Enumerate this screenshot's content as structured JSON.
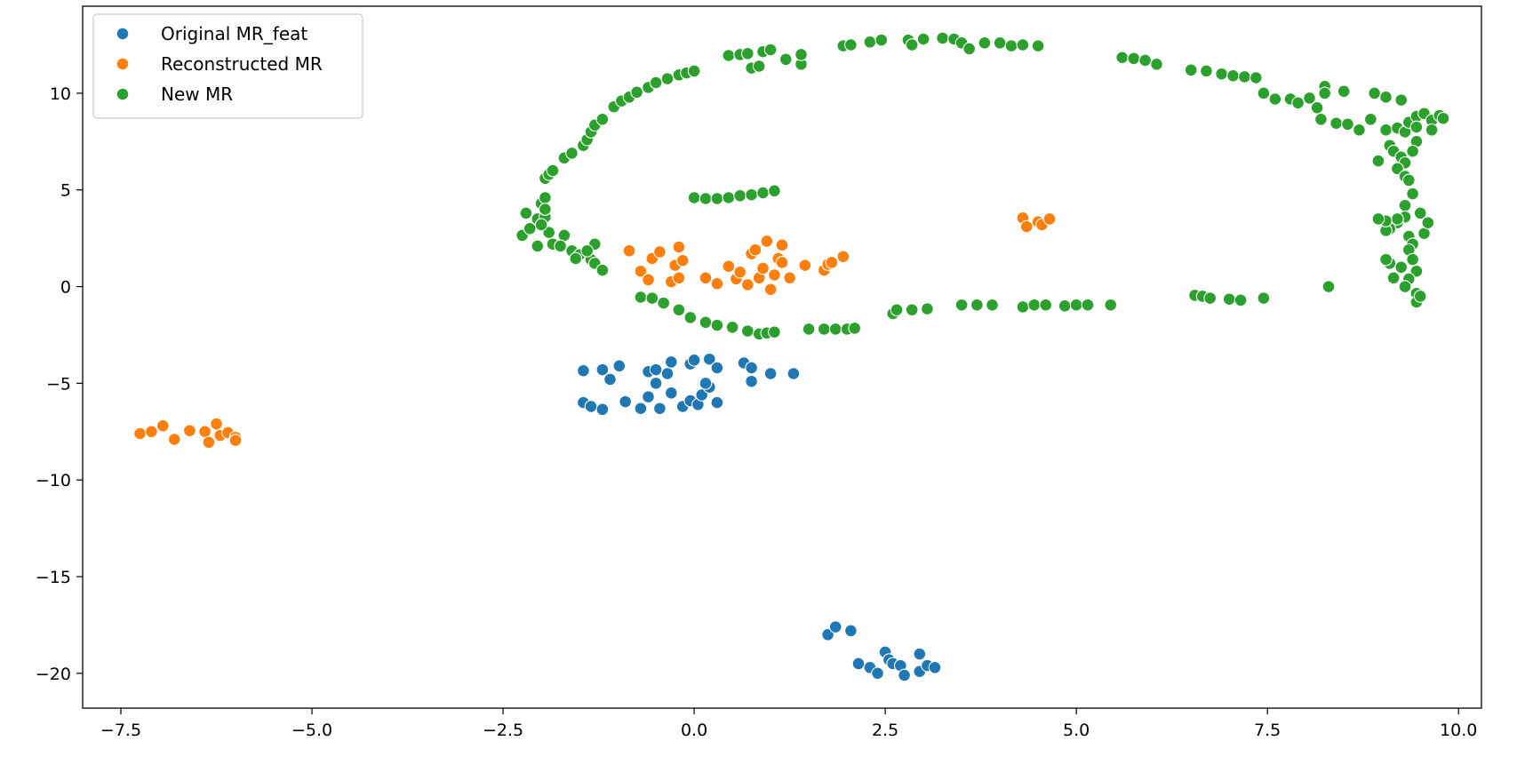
{
  "chart_data": {
    "type": "scatter",
    "title": "",
    "xlabel": "",
    "ylabel": "",
    "xlim": [
      -8.0,
      10.3
    ],
    "ylim": [
      -21.8,
      14.5
    ],
    "xticks": [
      -7.5,
      -5.0,
      -2.5,
      0.0,
      2.5,
      5.0,
      7.5,
      10.0
    ],
    "xtick_labels": [
      "−7.5",
      "−5.0",
      "−2.5",
      "0.0",
      "2.5",
      "5.0",
      "7.5",
      "10.0"
    ],
    "yticks": [
      -20,
      -15,
      -10,
      -5,
      0,
      5,
      10
    ],
    "ytick_labels": [
      "−20",
      "−15",
      "−10",
      "−5",
      "0",
      "5",
      "10"
    ],
    "grid": false,
    "legend_position": "top-left",
    "series": [
      {
        "name": "Original MR_feat",
        "color": "#1f77b4",
        "points": [
          [
            -1.45,
            -4.35
          ],
          [
            -1.2,
            -4.3
          ],
          [
            -1.1,
            -4.8
          ],
          [
            -0.98,
            -4.1
          ],
          [
            -0.6,
            -4.4
          ],
          [
            -0.5,
            -4.3
          ],
          [
            -0.35,
            -4.5
          ],
          [
            -0.3,
            -3.9
          ],
          [
            -0.05,
            -4.0
          ],
          [
            0.0,
            -3.8
          ],
          [
            0.2,
            -3.75
          ],
          [
            0.3,
            -4.2
          ],
          [
            0.65,
            -3.95
          ],
          [
            0.75,
            -4.2
          ],
          [
            1.0,
            -4.5
          ],
          [
            1.3,
            -4.5
          ],
          [
            -1.45,
            -6.0
          ],
          [
            -1.35,
            -6.2
          ],
          [
            -1.2,
            -6.35
          ],
          [
            -0.9,
            -5.95
          ],
          [
            -0.7,
            -6.3
          ],
          [
            -0.6,
            -5.7
          ],
          [
            -0.5,
            -5.0
          ],
          [
            -0.45,
            -6.3
          ],
          [
            -0.3,
            -5.5
          ],
          [
            -0.15,
            -6.2
          ],
          [
            -0.05,
            -5.9
          ],
          [
            0.05,
            -6.1
          ],
          [
            0.1,
            -5.6
          ],
          [
            0.2,
            -5.2
          ],
          [
            0.3,
            -6.0
          ],
          [
            0.15,
            -5.0
          ],
          [
            0.75,
            -4.9
          ],
          [
            1.75,
            -18.0
          ],
          [
            1.85,
            -17.6
          ],
          [
            2.05,
            -17.8
          ],
          [
            2.15,
            -19.5
          ],
          [
            2.3,
            -19.7
          ],
          [
            2.4,
            -20.0
          ],
          [
            2.5,
            -18.9
          ],
          [
            2.55,
            -19.3
          ],
          [
            2.6,
            -19.5
          ],
          [
            2.7,
            -19.6
          ],
          [
            2.75,
            -20.1
          ],
          [
            2.95,
            -19.0
          ],
          [
            2.95,
            -19.9
          ],
          [
            3.05,
            -19.6
          ],
          [
            3.15,
            -19.7
          ]
        ]
      },
      {
        "name": "Reconstructed MR",
        "color": "#ff7f0e",
        "points": [
          [
            -7.25,
            -7.6
          ],
          [
            -7.1,
            -7.5
          ],
          [
            -6.95,
            -7.2
          ],
          [
            -6.8,
            -7.9
          ],
          [
            -6.6,
            -7.45
          ],
          [
            -6.4,
            -7.5
          ],
          [
            -6.35,
            -8.05
          ],
          [
            -6.25,
            -7.1
          ],
          [
            -6.2,
            -7.7
          ],
          [
            -6.1,
            -7.55
          ],
          [
            -6.0,
            -7.8
          ],
          [
            -6.0,
            -7.95
          ],
          [
            -0.85,
            1.85
          ],
          [
            -0.7,
            0.8
          ],
          [
            -0.6,
            0.35
          ],
          [
            -0.55,
            1.45
          ],
          [
            -0.45,
            1.8
          ],
          [
            -0.3,
            0.25
          ],
          [
            -0.25,
            1.1
          ],
          [
            -0.2,
            2.05
          ],
          [
            -0.2,
            0.45
          ],
          [
            -0.15,
            1.35
          ],
          [
            0.15,
            0.45
          ],
          [
            0.3,
            0.15
          ],
          [
            0.45,
            1.05
          ],
          [
            0.55,
            0.4
          ],
          [
            0.6,
            0.75
          ],
          [
            0.7,
            0.1
          ],
          [
            0.75,
            1.7
          ],
          [
            0.8,
            1.9
          ],
          [
            0.85,
            0.45
          ],
          [
            0.9,
            0.95
          ],
          [
            0.95,
            2.35
          ],
          [
            1.0,
            -0.15
          ],
          [
            1.05,
            0.6
          ],
          [
            1.1,
            1.45
          ],
          [
            1.15,
            2.15
          ],
          [
            1.15,
            1.25
          ],
          [
            1.25,
            0.45
          ],
          [
            1.45,
            1.1
          ],
          [
            1.7,
            0.85
          ],
          [
            1.75,
            1.15
          ],
          [
            1.8,
            1.25
          ],
          [
            1.95,
            1.55
          ],
          [
            4.3,
            3.55
          ],
          [
            4.35,
            3.1
          ],
          [
            4.5,
            3.35
          ],
          [
            4.55,
            3.2
          ],
          [
            4.65,
            3.5
          ]
        ]
      },
      {
        "name": "New MR",
        "color": "#2ca02c",
        "points": [
          [
            -2.25,
            2.65
          ],
          [
            -2.15,
            3.0
          ],
          [
            -2.2,
            3.8
          ],
          [
            -2.05,
            3.5
          ],
          [
            -2.0,
            4.3
          ],
          [
            -1.95,
            4.6
          ],
          [
            -1.95,
            5.6
          ],
          [
            -1.9,
            5.8
          ],
          [
            -1.85,
            6.0
          ],
          [
            -1.95,
            3.6
          ],
          [
            -1.9,
            2.8
          ],
          [
            -2.05,
            2.1
          ],
          [
            -1.85,
            2.2
          ],
          [
            -1.7,
            2.65
          ],
          [
            -1.6,
            1.85
          ],
          [
            -1.5,
            1.65
          ],
          [
            -1.35,
            1.4
          ],
          [
            -1.3,
            1.2
          ],
          [
            -1.3,
            2.2
          ],
          [
            -1.4,
            1.85
          ],
          [
            -1.2,
            0.85
          ],
          [
            -1.55,
            1.45
          ],
          [
            -1.75,
            2.1
          ],
          [
            -1.95,
            4.0
          ],
          [
            -2.0,
            3.2
          ],
          [
            -1.7,
            6.65
          ],
          [
            -1.6,
            6.9
          ],
          [
            -1.45,
            7.3
          ],
          [
            -1.4,
            7.6
          ],
          [
            -1.35,
            8.0
          ],
          [
            -1.3,
            8.35
          ],
          [
            -1.2,
            8.65
          ],
          [
            -1.05,
            9.3
          ],
          [
            -0.95,
            9.6
          ],
          [
            -0.85,
            9.8
          ],
          [
            -0.75,
            10.05
          ],
          [
            -0.6,
            10.3
          ],
          [
            -0.5,
            10.55
          ],
          [
            -0.35,
            10.75
          ],
          [
            -0.2,
            10.95
          ],
          [
            -0.1,
            11.05
          ],
          [
            0.0,
            11.15
          ],
          [
            0.45,
            11.95
          ],
          [
            0.6,
            12.0
          ],
          [
            0.7,
            12.05
          ],
          [
            0.75,
            11.3
          ],
          [
            0.85,
            11.4
          ],
          [
            0.9,
            12.15
          ],
          [
            1.0,
            12.25
          ],
          [
            1.2,
            11.75
          ],
          [
            1.4,
            11.5
          ],
          [
            1.4,
            12.0
          ],
          [
            1.95,
            12.45
          ],
          [
            2.05,
            12.5
          ],
          [
            2.3,
            12.65
          ],
          [
            2.45,
            12.75
          ],
          [
            2.8,
            12.75
          ],
          [
            2.85,
            12.5
          ],
          [
            3.0,
            12.8
          ],
          [
            3.25,
            12.85
          ],
          [
            3.4,
            12.8
          ],
          [
            3.5,
            12.6
          ],
          [
            3.6,
            12.3
          ],
          [
            3.8,
            12.6
          ],
          [
            4.0,
            12.6
          ],
          [
            4.15,
            12.45
          ],
          [
            4.3,
            12.5
          ],
          [
            4.5,
            12.45
          ],
          [
            5.6,
            11.85
          ],
          [
            5.75,
            11.8
          ],
          [
            5.9,
            11.7
          ],
          [
            6.05,
            11.5
          ],
          [
            6.5,
            11.2
          ],
          [
            6.7,
            11.15
          ],
          [
            6.9,
            11.0
          ],
          [
            7.05,
            10.9
          ],
          [
            7.2,
            10.85
          ],
          [
            7.35,
            10.8
          ],
          [
            7.45,
            10.0
          ],
          [
            7.6,
            9.7
          ],
          [
            7.8,
            9.7
          ],
          [
            7.9,
            9.5
          ],
          [
            8.05,
            9.75
          ],
          [
            8.15,
            9.25
          ],
          [
            8.25,
            10.35
          ],
          [
            8.25,
            10.0
          ],
          [
            8.5,
            10.1
          ],
          [
            8.9,
            10.0
          ],
          [
            9.05,
            9.8
          ],
          [
            9.25,
            9.65
          ],
          [
            8.2,
            8.65
          ],
          [
            8.4,
            8.45
          ],
          [
            8.55,
            8.4
          ],
          [
            8.7,
            8.1
          ],
          [
            8.85,
            8.65
          ],
          [
            9.05,
            8.1
          ],
          [
            9.2,
            8.2
          ],
          [
            9.3,
            8.0
          ],
          [
            9.35,
            8.5
          ],
          [
            9.45,
            8.8
          ],
          [
            9.55,
            8.95
          ],
          [
            9.65,
            8.6
          ],
          [
            9.75,
            8.85
          ],
          [
            9.8,
            8.7
          ],
          [
            9.65,
            8.1
          ],
          [
            9.45,
            8.25
          ],
          [
            9.1,
            7.3
          ],
          [
            9.15,
            7.0
          ],
          [
            9.25,
            6.7
          ],
          [
            9.3,
            6.4
          ],
          [
            9.2,
            6.1
          ],
          [
            9.3,
            5.7
          ],
          [
            9.35,
            5.5
          ],
          [
            9.4,
            4.8
          ],
          [
            9.3,
            4.2
          ],
          [
            9.3,
            3.6
          ],
          [
            9.2,
            3.3
          ],
          [
            9.1,
            3.0
          ],
          [
            9.05,
            2.9
          ],
          [
            9.35,
            2.6
          ],
          [
            9.4,
            2.2
          ],
          [
            9.35,
            1.9
          ],
          [
            9.4,
            1.4
          ],
          [
            9.45,
            0.8
          ],
          [
            9.35,
            0.4
          ],
          [
            9.3,
            0.0
          ],
          [
            9.45,
            -0.35
          ],
          [
            9.5,
            -0.55
          ],
          [
            9.45,
            -0.8
          ],
          [
            9.5,
            -0.5
          ],
          [
            9.55,
            2.75
          ],
          [
            9.6,
            3.3
          ],
          [
            9.5,
            3.8
          ],
          [
            9.2,
            3.5
          ],
          [
            9.05,
            3.4
          ],
          [
            8.95,
            3.5
          ],
          [
            8.95,
            6.5
          ],
          [
            9.45,
            7.5
          ],
          [
            9.4,
            7.0
          ],
          [
            9.1,
            1.2
          ],
          [
            9.05,
            1.4
          ],
          [
            9.15,
            0.45
          ],
          [
            9.25,
            1.0
          ],
          [
            0.0,
            4.6
          ],
          [
            0.15,
            4.55
          ],
          [
            0.3,
            4.55
          ],
          [
            0.45,
            4.6
          ],
          [
            0.6,
            4.7
          ],
          [
            0.75,
            4.75
          ],
          [
            0.9,
            4.85
          ],
          [
            1.05,
            4.95
          ],
          [
            -0.7,
            -0.55
          ],
          [
            -0.55,
            -0.6
          ],
          [
            -0.4,
            -0.85
          ],
          [
            -0.2,
            -1.2
          ],
          [
            -0.05,
            -1.6
          ],
          [
            0.15,
            -1.85
          ],
          [
            0.3,
            -2.0
          ],
          [
            0.5,
            -2.1
          ],
          [
            0.7,
            -2.3
          ],
          [
            0.85,
            -2.45
          ],
          [
            0.95,
            -2.4
          ],
          [
            1.05,
            -2.35
          ],
          [
            1.5,
            -2.2
          ],
          [
            1.7,
            -2.2
          ],
          [
            1.85,
            -2.2
          ],
          [
            2.0,
            -2.2
          ],
          [
            2.1,
            -2.15
          ],
          [
            2.6,
            -1.4
          ],
          [
            2.65,
            -1.2
          ],
          [
            2.85,
            -1.2
          ],
          [
            3.05,
            -1.15
          ],
          [
            3.5,
            -0.95
          ],
          [
            3.7,
            -0.95
          ],
          [
            3.9,
            -0.95
          ],
          [
            4.3,
            -1.05
          ],
          [
            4.45,
            -0.95
          ],
          [
            4.6,
            -0.95
          ],
          [
            4.85,
            -1.0
          ],
          [
            5.0,
            -0.95
          ],
          [
            5.15,
            -0.95
          ],
          [
            5.45,
            -0.95
          ],
          [
            6.55,
            -0.45
          ],
          [
            6.65,
            -0.5
          ],
          [
            6.75,
            -0.6
          ],
          [
            7.0,
            -0.65
          ],
          [
            7.15,
            -0.7
          ],
          [
            7.45,
            -0.6
          ],
          [
            8.3,
            0.0
          ]
        ]
      }
    ]
  }
}
